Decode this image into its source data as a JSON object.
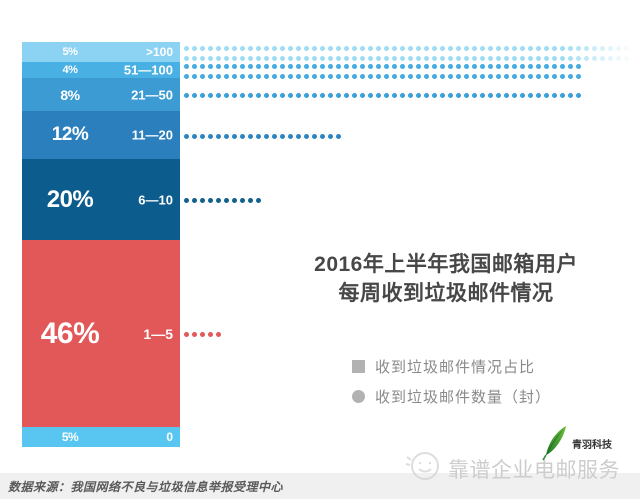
{
  "chart_data": {
    "type": "bar",
    "title": "2016年上半年我国邮箱用户每周收到垃圾邮件情况",
    "title_lines": [
      "2016年上半年我国邮箱用户",
      "每周收到垃圾邮件情况"
    ],
    "legend": [
      {
        "marker": "square",
        "label": "收到垃圾邮件情况占比"
      },
      {
        "marker": "circle",
        "label": "收到垃圾邮件数量（封）"
      }
    ],
    "ylabel": "收到垃圾邮件数量（封）",
    "xlabel": "收到垃圾邮件情况占比",
    "segments": [
      {
        "percent_label": "5%",
        "value": 5,
        "range": ">100",
        "color": "#8bd2f3",
        "dot_color": "#9edcf4",
        "dot_rows": 2,
        "dots_per_row": 56,
        "fade_tail": 8
      },
      {
        "percent_label": "4%",
        "value": 4,
        "range": "51—100",
        "color": "#49b0e4",
        "dot_color": "#45abdf",
        "dot_rows": 2,
        "dots_per_row": 50,
        "fade_tail": 0
      },
      {
        "percent_label": "8%",
        "value": 8,
        "range": "21—50",
        "color": "#3d9bd4",
        "dot_color": "#3b9ed8",
        "dot_rows": 1,
        "dots_per_row": 50,
        "fade_tail": 0
      },
      {
        "percent_label": "12%",
        "value": 12,
        "range": "11—20",
        "color": "#2a7fbc",
        "dot_color": "#2d84c0",
        "dot_rows": 1,
        "dots_per_row": 20,
        "fade_tail": 0
      },
      {
        "percent_label": "20%",
        "value": 20,
        "range": "6—10",
        "color": "#0d5c8e",
        "dot_color": "#11608f",
        "dot_rows": 1,
        "dots_per_row": 10,
        "fade_tail": 0
      },
      {
        "percent_label": "46%",
        "value": 46,
        "range": "1—5",
        "color": "#e25757",
        "dot_color": "#e25757",
        "dot_rows": 1,
        "dots_per_row": 5,
        "fade_tail": 0
      },
      {
        "percent_label": "5%",
        "value": 5,
        "range": "0",
        "color": "#58c6f1",
        "dot_color": null,
        "dot_rows": 0,
        "dots_per_row": 0,
        "fade_tail": 0
      }
    ]
  },
  "source": {
    "text": "数据来源：我国网络不良与垃圾信息举报受理中心"
  },
  "watermark": {
    "text": "靠谱企业电邮服务",
    "brand": "青羽科技"
  }
}
